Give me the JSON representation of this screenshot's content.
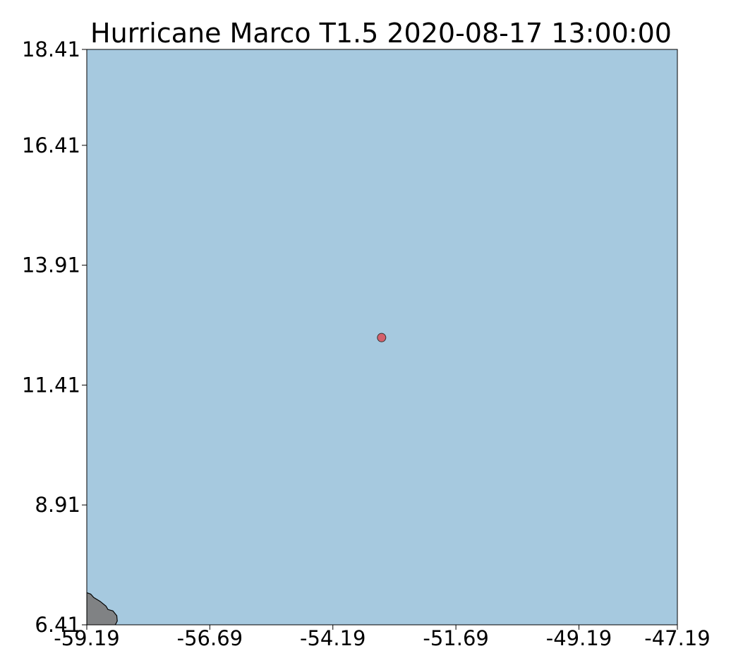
{
  "title": "Hurricane Marco T1.5 2020-08-17 13:00:00",
  "colors": {
    "ocean": "#a6c9df",
    "land": "#808284",
    "coastline": "#000000",
    "storm_marker": "#d4606b",
    "axis": "#000000"
  },
  "chart_data": {
    "type": "scatter",
    "title": "Hurricane Marco T1.5 2020-08-17 13:00:00",
    "xlabel": "",
    "ylabel": "",
    "xlim": [
      -59.19,
      -47.19
    ],
    "ylim": [
      6.41,
      18.41
    ],
    "x_ticks": [
      "-59.19",
      "-56.69",
      "-54.19",
      "-51.69",
      "-49.19",
      "-47.19"
    ],
    "y_ticks": [
      "18.41",
      "16.41",
      "13.91",
      "11.41",
      "8.91",
      "6.41"
    ],
    "grid": false,
    "points": [
      {
        "lon": -53.2,
        "lat": 12.4
      }
    ],
    "land_polygons": [
      [
        [
          -59.19,
          6.41
        ],
        [
          -59.19,
          7.08
        ],
        [
          -59.11,
          7.05
        ],
        [
          -59.05,
          6.98
        ],
        [
          -58.92,
          6.9
        ],
        [
          -58.8,
          6.8
        ],
        [
          -58.76,
          6.73
        ],
        [
          -58.66,
          6.7
        ],
        [
          -58.62,
          6.65
        ],
        [
          -58.58,
          6.6
        ],
        [
          -58.57,
          6.49
        ],
        [
          -58.6,
          6.43
        ],
        [
          -58.64,
          6.38
        ],
        [
          -58.66,
          6.33
        ],
        [
          -58.67,
          6.09
        ],
        [
          -58.69,
          5.88
        ],
        [
          -58.76,
          5.56
        ],
        [
          -58.76,
          5.4
        ],
        [
          -59.19,
          5.4
        ]
      ],
      [
        [
          -58.62,
          6.41
        ],
        [
          -58.62,
          6.28
        ],
        [
          -58.58,
          6.17
        ],
        [
          -58.5,
          6.02
        ],
        [
          -58.4,
          5.98
        ],
        [
          -58.3,
          5.95
        ],
        [
          -58.2,
          5.92
        ],
        [
          -58.08,
          5.9
        ],
        [
          -58.0,
          5.85
        ],
        [
          -57.88,
          5.8
        ],
        [
          -57.75,
          5.72
        ],
        [
          -57.6,
          5.62
        ],
        [
          -57.56,
          5.5
        ],
        [
          -57.45,
          5.4
        ],
        [
          -58.7,
          5.4
        ],
        [
          -58.69,
          6.2
        ]
      ]
    ]
  }
}
